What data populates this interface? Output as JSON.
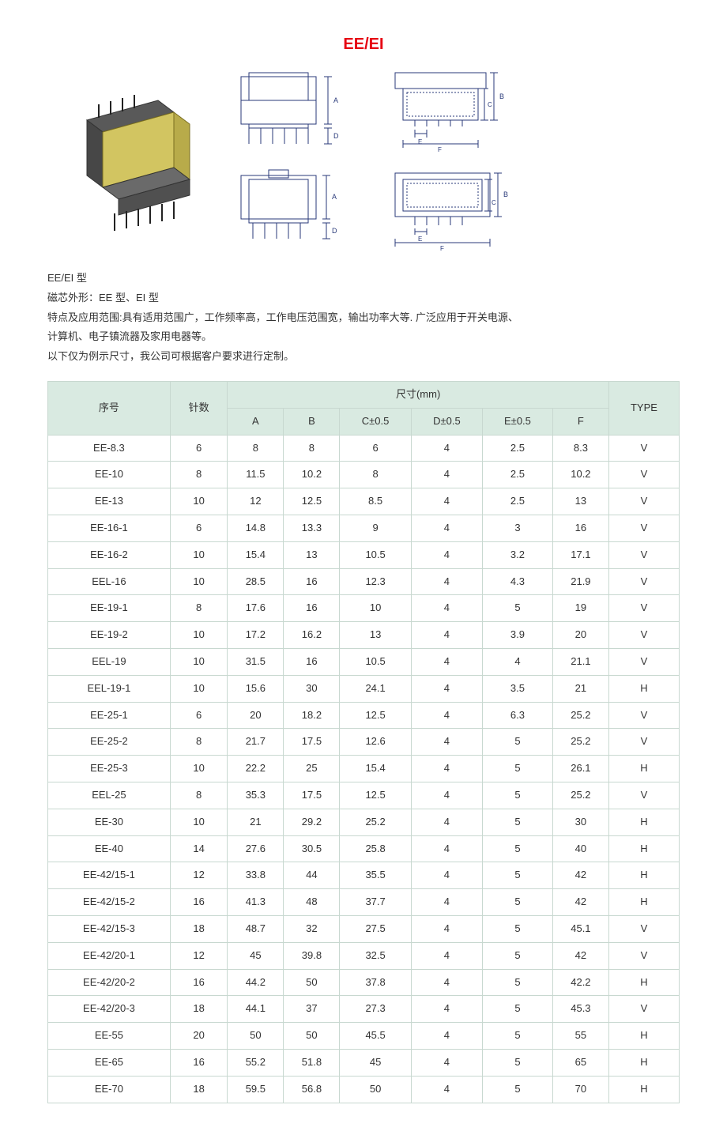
{
  "header": {
    "title": "EE/EI",
    "title_color": "#e60012"
  },
  "description": {
    "line1": "EE/EI 型",
    "line2": "磁芯外形：EE 型、EI 型",
    "line3": "特点及应用范围:具有适用范围广，工作频率高，工作电压范围宽，输出功率大等. 广泛应用于开关电源、",
    "line4": "计算机、电子镇流器及家用电器等。",
    "line5": "以下仅为例示尺寸，我公司可根据客户要求进行定制。"
  },
  "table": {
    "header_bg": "#d9eae1",
    "border_color": "#c8d8d0",
    "headers": {
      "seq": "序号",
      "pins": "针数",
      "dim_group": "尺寸(mm)",
      "type": "TYPE",
      "cols": [
        "A",
        "B",
        "C±0.5",
        "D±0.5",
        "E±0.5",
        "F"
      ]
    },
    "rows": [
      {
        "seq": "EE-8.3",
        "pins": "6",
        "A": "8",
        "B": "8",
        "C": "6",
        "D": "4",
        "E": "2.5",
        "F": "8.3",
        "type": "V"
      },
      {
        "seq": "EE-10",
        "pins": "8",
        "A": "11.5",
        "B": "10.2",
        "C": "8",
        "D": "4",
        "E": "2.5",
        "F": "10.2",
        "type": "V"
      },
      {
        "seq": "EE-13",
        "pins": "10",
        "A": "12",
        "B": "12.5",
        "C": "8.5",
        "D": "4",
        "E": "2.5",
        "F": "13",
        "type": "V"
      },
      {
        "seq": "EE-16-1",
        "pins": "6",
        "A": "14.8",
        "B": "13.3",
        "C": "9",
        "D": "4",
        "E": "3",
        "F": "16",
        "type": "V"
      },
      {
        "seq": "EE-16-2",
        "pins": "10",
        "A": "15.4",
        "B": "13",
        "C": "10.5",
        "D": "4",
        "E": "3.2",
        "F": "17.1",
        "type": "V"
      },
      {
        "seq": "EEL-16",
        "pins": "10",
        "A": "28.5",
        "B": "16",
        "C": "12.3",
        "D": "4",
        "E": "4.3",
        "F": "21.9",
        "type": "V"
      },
      {
        "seq": "EE-19-1",
        "pins": "8",
        "A": "17.6",
        "B": "16",
        "C": "10",
        "D": "4",
        "E": "5",
        "F": "19",
        "type": "V"
      },
      {
        "seq": "EE-19-2",
        "pins": "10",
        "A": "17.2",
        "B": "16.2",
        "C": "13",
        "D": "4",
        "E": "3.9",
        "F": "20",
        "type": "V"
      },
      {
        "seq": "EEL-19",
        "pins": "10",
        "A": "31.5",
        "B": "16",
        "C": "10.5",
        "D": "4",
        "E": "4",
        "F": "21.1",
        "type": "V"
      },
      {
        "seq": "EEL-19-1",
        "pins": "10",
        "A": "15.6",
        "B": "30",
        "C": "24.1",
        "D": "4",
        "E": "3.5",
        "F": "21",
        "type": "H"
      },
      {
        "seq": "EE-25-1",
        "pins": "6",
        "A": "20",
        "B": "18.2",
        "C": "12.5",
        "D": "4",
        "E": "6.3",
        "F": "25.2",
        "type": "V"
      },
      {
        "seq": "EE-25-2",
        "pins": "8",
        "A": "21.7",
        "B": "17.5",
        "C": "12.6",
        "D": "4",
        "E": "5",
        "F": "25.2",
        "type": "V"
      },
      {
        "seq": "EE-25-3",
        "pins": "10",
        "A": "22.2",
        "B": "25",
        "C": "15.4",
        "D": "4",
        "E": "5",
        "F": "26.1",
        "type": "H"
      },
      {
        "seq": "EEL-25",
        "pins": "8",
        "A": "35.3",
        "B": "17.5",
        "C": "12.5",
        "D": "4",
        "E": "5",
        "F": "25.2",
        "type": "V"
      },
      {
        "seq": "EE-30",
        "pins": "10",
        "A": "21",
        "B": "29.2",
        "C": "25.2",
        "D": "4",
        "E": "5",
        "F": "30",
        "type": "H"
      },
      {
        "seq": "EE-40",
        "pins": "14",
        "A": "27.6",
        "B": "30.5",
        "C": "25.8",
        "D": "4",
        "E": "5",
        "F": "40",
        "type": "H"
      },
      {
        "seq": "EE-42/15-1",
        "pins": "12",
        "A": "33.8",
        "B": "44",
        "C": "35.5",
        "D": "4",
        "E": "5",
        "F": "42",
        "type": "H"
      },
      {
        "seq": "EE-42/15-2",
        "pins": "16",
        "A": "41.3",
        "B": "48",
        "C": "37.7",
        "D": "4",
        "E": "5",
        "F": "42",
        "type": "H"
      },
      {
        "seq": "EE-42/15-3",
        "pins": "18",
        "A": "48.7",
        "B": "32",
        "C": "27.5",
        "D": "4",
        "E": "5",
        "F": "45.1",
        "type": "V"
      },
      {
        "seq": "EE-42/20-1",
        "pins": "12",
        "A": "45",
        "B": "39.8",
        "C": "32.5",
        "D": "4",
        "E": "5",
        "F": "42",
        "type": "V"
      },
      {
        "seq": "EE-42/20-2",
        "pins": "16",
        "A": "44.2",
        "B": "50",
        "C": "37.8",
        "D": "4",
        "E": "5",
        "F": "42.2",
        "type": "H"
      },
      {
        "seq": "EE-42/20-3",
        "pins": "18",
        "A": "44.1",
        "B": "37",
        "C": "27.3",
        "D": "4",
        "E": "5",
        "F": "45.3",
        "type": "V"
      },
      {
        "seq": "EE-55",
        "pins": "20",
        "A": "50",
        "B": "50",
        "C": "45.5",
        "D": "4",
        "E": "5",
        "F": "55",
        "type": "H"
      },
      {
        "seq": "EE-65",
        "pins": "16",
        "A": "55.2",
        "B": "51.8",
        "C": "45",
        "D": "4",
        "E": "5",
        "F": "65",
        "type": "H"
      },
      {
        "seq": "EE-70",
        "pins": "18",
        "A": "59.5",
        "B": "56.8",
        "C": "50",
        "D": "4",
        "E": "5",
        "F": "70",
        "type": "H"
      }
    ]
  },
  "diagram_style": {
    "stroke": "#2a3a7a",
    "stroke_width": 1,
    "dim_labels": [
      "A",
      "B",
      "C",
      "D",
      "E",
      "F"
    ]
  }
}
